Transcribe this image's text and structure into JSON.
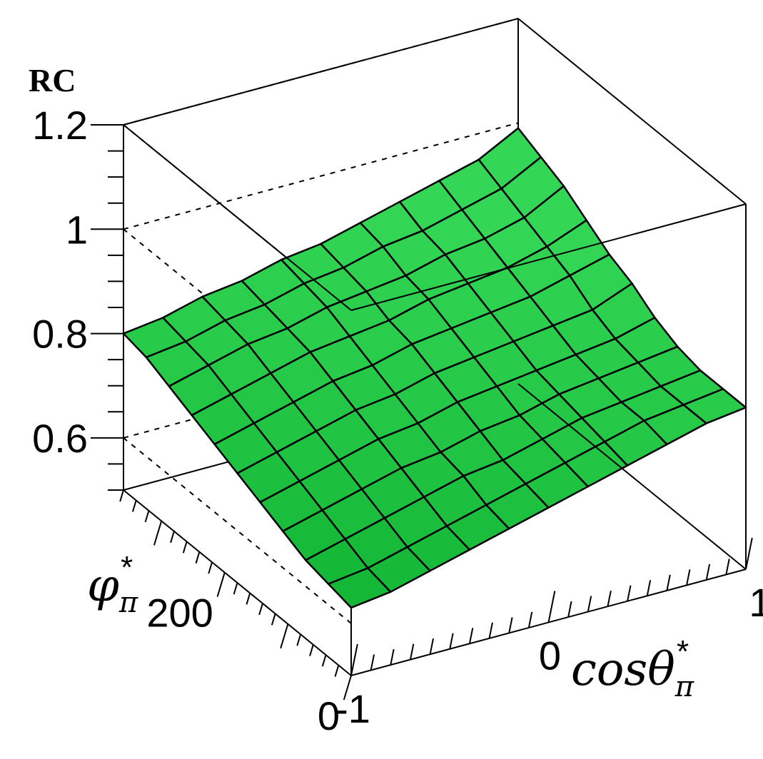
{
  "chart_data": {
    "type": "surface",
    "z_label": "RC",
    "x_label": "cosθ",
    "x_label_sub": "π",
    "x_label_sup": "*",
    "y_label": "φ",
    "y_label_sub": "π",
    "y_label_sup": "*",
    "x_range": [
      -1,
      1
    ],
    "y_range": [
      0,
      360
    ],
    "z_range": [
      0.5,
      1.2
    ],
    "z_ticks": [
      {
        "value": 0.6,
        "label": "0.6"
      },
      {
        "value": 0.8,
        "label": "0.8"
      },
      {
        "value": 1.0,
        "label": "1"
      },
      {
        "value": 1.2,
        "label": "1.2"
      }
    ],
    "x_tick_labels": [
      {
        "value": -1,
        "label": "-1"
      },
      {
        "value": 0,
        "label": "0"
      },
      {
        "value": 1,
        "label": "1"
      }
    ],
    "y_tick_labels": [
      {
        "value": 0,
        "label": "0"
      },
      {
        "value": 200,
        "label": "200"
      }
    ],
    "grid": "dashed z-grid on back walls",
    "surface_color": "#22c444",
    "mesh_color": "#000000",
    "x_nodes": [
      -1.0,
      -0.8,
      -0.6,
      -0.4,
      -0.2,
      0.0,
      0.2,
      0.4,
      0.6,
      0.8,
      1.0
    ],
    "y_nodes": [
      0,
      36,
      72,
      108,
      144,
      180,
      216,
      252,
      288,
      324,
      360
    ],
    "z_values": [
      [
        0.63,
        0.64,
        0.66,
        0.68,
        0.7,
        0.72,
        0.74,
        0.76,
        0.78,
        0.8,
        0.81
      ],
      [
        0.64,
        0.65,
        0.67,
        0.69,
        0.71,
        0.73,
        0.75,
        0.77,
        0.79,
        0.8,
        0.81
      ],
      [
        0.65,
        0.67,
        0.69,
        0.71,
        0.73,
        0.74,
        0.76,
        0.78,
        0.79,
        0.8,
        0.81
      ],
      [
        0.67,
        0.69,
        0.71,
        0.73,
        0.74,
        0.76,
        0.77,
        0.79,
        0.8,
        0.81,
        0.82
      ],
      [
        0.69,
        0.71,
        0.73,
        0.75,
        0.76,
        0.78,
        0.79,
        0.8,
        0.81,
        0.82,
        0.84
      ],
      [
        0.71,
        0.73,
        0.75,
        0.77,
        0.78,
        0.8,
        0.81,
        0.82,
        0.83,
        0.84,
        0.87
      ],
      [
        0.73,
        0.75,
        0.77,
        0.79,
        0.8,
        0.82,
        0.83,
        0.84,
        0.85,
        0.87,
        0.89
      ],
      [
        0.75,
        0.77,
        0.79,
        0.81,
        0.82,
        0.83,
        0.85,
        0.86,
        0.87,
        0.89,
        0.92
      ],
      [
        0.77,
        0.79,
        0.81,
        0.82,
        0.84,
        0.85,
        0.86,
        0.88,
        0.89,
        0.91,
        0.95
      ],
      [
        0.79,
        0.8,
        0.82,
        0.83,
        0.85,
        0.86,
        0.88,
        0.89,
        0.91,
        0.93,
        0.97
      ],
      [
        0.8,
        0.81,
        0.83,
        0.84,
        0.86,
        0.87,
        0.89,
        0.91,
        0.93,
        0.95,
        0.99
      ]
    ]
  }
}
